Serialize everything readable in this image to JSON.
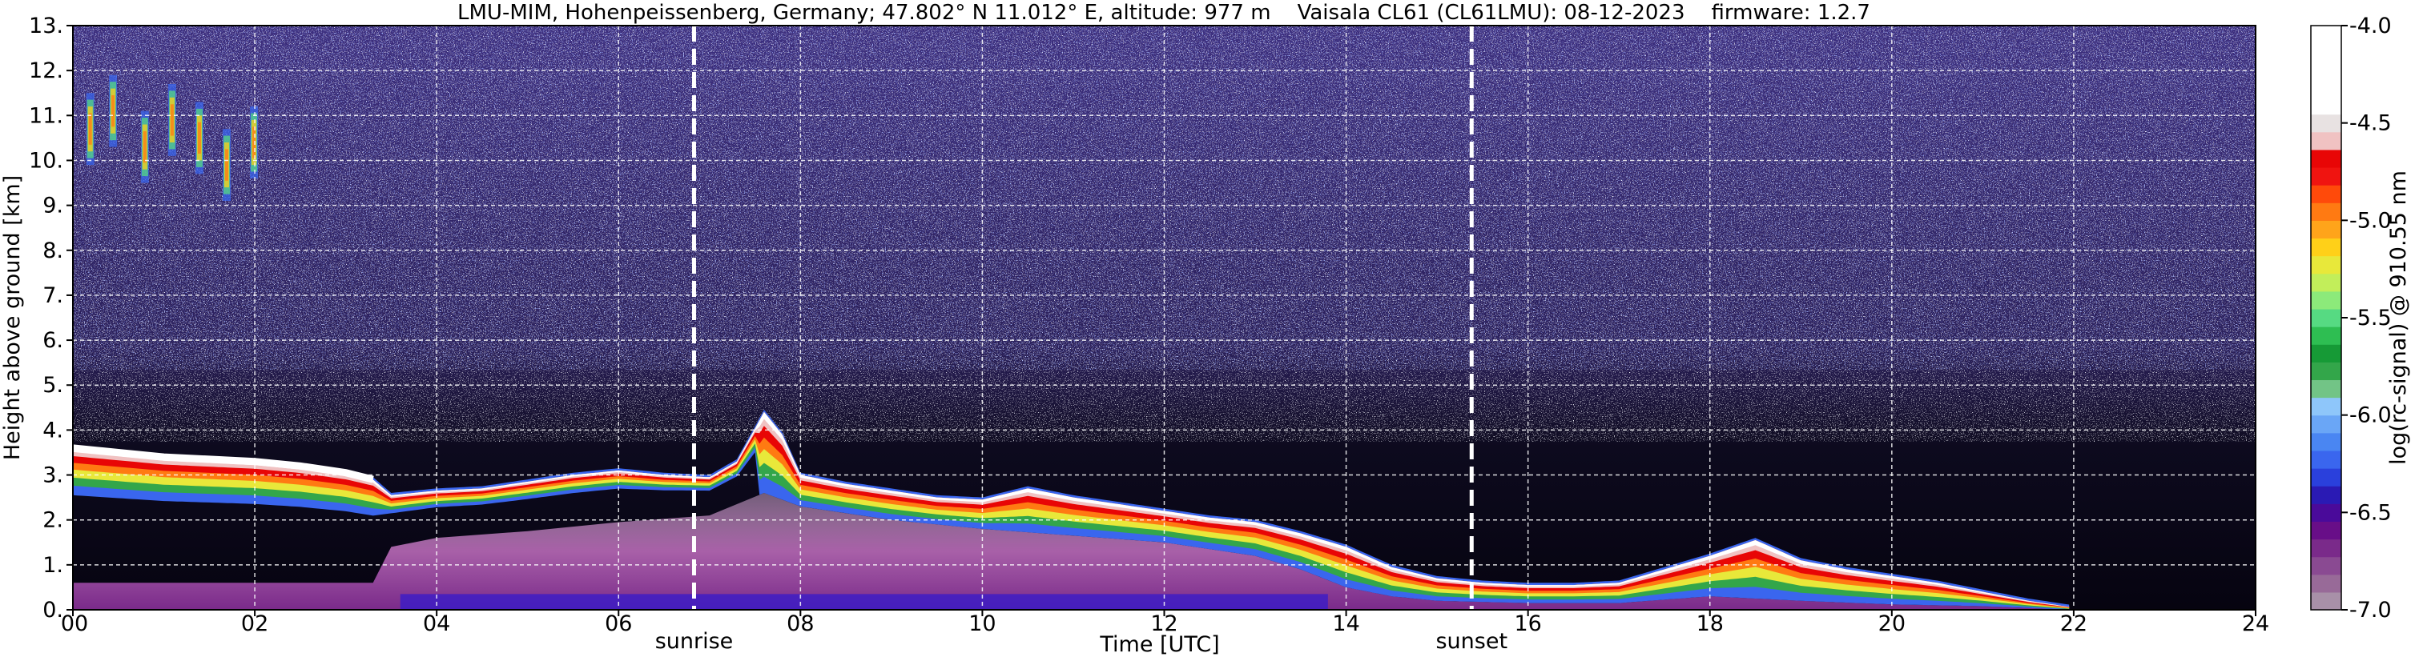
{
  "chart_data": {
    "type": "heatmap",
    "title": "LMU-MIM, Hohenpeissenberg, Germany; 47.802° N 11.012° E, altitude: 977 m    Vaisala CL61 (CL61LMU): 08-12-2023    firmware: 1.2.7",
    "xlabel": "Time [UTC]",
    "ylabel": "Height above ground [km]",
    "xlim": [
      0,
      24
    ],
    "ylim": [
      0,
      13
    ],
    "x_ticks": [
      "00",
      "02",
      "04",
      "06",
      "08",
      "10",
      "12",
      "14",
      "16",
      "18",
      "20",
      "22",
      "24"
    ],
    "y_ticks": [
      "0.",
      "1.",
      "2.",
      "3.",
      "4.",
      "5.",
      "6.",
      "7.",
      "8.",
      "9.",
      "10.",
      "11.",
      "12.",
      "13."
    ],
    "grid": true,
    "colorbar": {
      "label": "log(rc-signal) @ 910.55 nm",
      "range": [
        -7.0,
        -4.0
      ],
      "ticks": [
        "-4.0",
        "-4.5",
        "-5.0",
        "-5.5",
        "-6.0",
        "-6.5",
        "-7.0"
      ],
      "colors": [
        "#a890a8",
        "#986a98",
        "#8a4a92",
        "#7a2a8a",
        "#680e88",
        "#4a0a9a",
        "#2a1ab4",
        "#2a40dc",
        "#3a66ee",
        "#4a86f2",
        "#6aa6f6",
        "#8ec6fa",
        "#72c486",
        "#33a64a",
        "#169a36",
        "#2ebe52",
        "#56da82",
        "#8cea7a",
        "#c2ee5a",
        "#e8e83a",
        "#ffd018",
        "#ffa41a",
        "#ff7a12",
        "#ff4a0a",
        "#f01410",
        "#e80606",
        "#f0c2c2",
        "#e8e2e2",
        "#ffffff",
        "#ffffff",
        "#ffffff",
        "#ffffff",
        "#ffffff"
      ]
    },
    "background_color": "#4a3a8a",
    "lower_background_color": "#060410",
    "events": [
      {
        "label": "sunrise",
        "x": 6.83
      },
      {
        "label": "sunset",
        "x": 15.38
      }
    ],
    "layers": [
      {
        "name": "aerosol layer top",
        "x": [
          0,
          0.5,
          1,
          1.5,
          2,
          2.5,
          3,
          3.3,
          3.5,
          4,
          4.5,
          5,
          5.5,
          6,
          6.5,
          7,
          7.3,
          7.6,
          7.8,
          8,
          8.5,
          9,
          9.5,
          10,
          10.5,
          11,
          11.5,
          12,
          12.5,
          13,
          13.5,
          14,
          14.5,
          15,
          15.5,
          16,
          16.5,
          17,
          17.5,
          18,
          18.5,
          19,
          19.5,
          20,
          20.5,
          21,
          21.5,
          22
        ],
        "y": [
          3.6,
          3.5,
          3.4,
          3.35,
          3.3,
          3.2,
          3.05,
          2.9,
          2.55,
          2.65,
          2.7,
          2.85,
          3.0,
          3.1,
          3.0,
          2.95,
          3.3,
          4.4,
          3.9,
          3.0,
          2.8,
          2.65,
          2.5,
          2.45,
          2.7,
          2.5,
          2.35,
          2.2,
          2.05,
          1.95,
          1.7,
          1.4,
          0.95,
          0.7,
          0.6,
          0.55,
          0.55,
          0.6,
          0.9,
          1.2,
          1.55,
          1.1,
          0.9,
          0.75,
          0.6,
          0.4,
          0.2,
          0.05
        ]
      },
      {
        "name": "aerosol layer base",
        "x": [
          0,
          3.3,
          3.5,
          4,
          5,
          6,
          7,
          7.6,
          8,
          9,
          10,
          11,
          12,
          13,
          13.5,
          14,
          14.5,
          15,
          16,
          17,
          18,
          19,
          20,
          21,
          22
        ],
        "y": [
          0.6,
          0.6,
          1.4,
          1.6,
          1.75,
          1.95,
          2.1,
          2.6,
          2.3,
          2.0,
          1.8,
          1.65,
          1.5,
          1.2,
          0.9,
          0.5,
          0.3,
          0.2,
          0.15,
          0.15,
          0.3,
          0.2,
          0.12,
          0.08,
          0.0
        ]
      },
      {
        "name": "high cloud",
        "x": [
          0.2,
          0.45,
          0.8,
          1.1,
          1.4,
          1.7,
          2.0
        ],
        "y": [
          10.6,
          11.0,
          10.2,
          10.8,
          10.4,
          9.8,
          10.3
        ]
      }
    ]
  }
}
